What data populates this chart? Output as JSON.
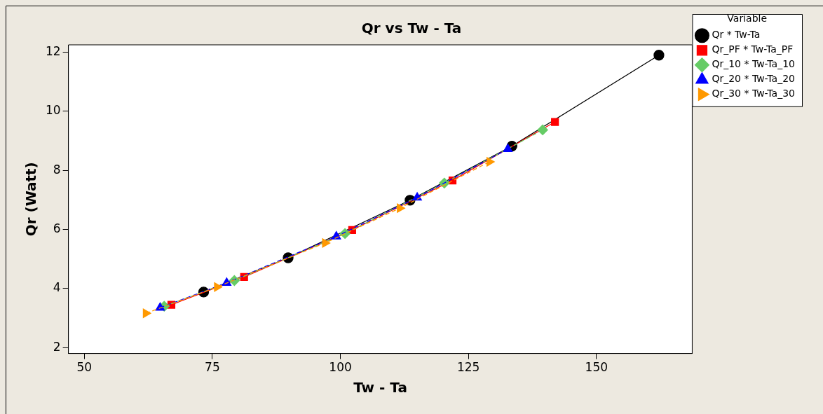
{
  "chart_data": {
    "type": "line",
    "title": "Qr vs Tw - Ta",
    "xlabel": "Tw - Ta",
    "ylabel": "Qr (Watt)",
    "legend_title": "Variable",
    "legend": "right",
    "grid": false,
    "xlim": [
      46.9,
      168.7
    ],
    "xticks": [
      50,
      75,
      100,
      125,
      150
    ],
    "ylim": [
      1.8,
      12.25
    ],
    "yticks": [
      2,
      4,
      6,
      8,
      10,
      12
    ],
    "series": [
      {
        "name": "Qr * Tw-Ta",
        "color": "#000000",
        "marker": "circle",
        "line_style": "solid",
        "x": [
          73.3,
          89.8,
          113.6,
          133.5,
          162.2
        ],
        "values": [
          3.88,
          5.04,
          6.99,
          8.82,
          11.9
        ]
      },
      {
        "name": "Qr_PF * Tw-Ta_PF",
        "color": "#ff0000",
        "marker": "square",
        "line_style": "solid",
        "x": [
          67.0,
          81.2,
          102.3,
          121.9,
          141.9
        ],
        "values": [
          3.45,
          4.39,
          5.98,
          7.66,
          9.64
        ]
      },
      {
        "name": "Qr_10 * Tw-Ta_10",
        "color": "#66cc66",
        "marker": "diamond",
        "line_style": "dashed",
        "x": [
          65.6,
          79.3,
          100.9,
          120.3,
          139.5
        ],
        "values": [
          3.4,
          4.27,
          5.86,
          7.57,
          9.37
        ]
      },
      {
        "name": "Qr_20 * Tw-Ta_20",
        "color": "#0000ff",
        "marker": "triangle",
        "line_style": "dashed",
        "x": [
          64.8,
          77.8,
          99.2,
          115.0,
          132.7
        ],
        "values": [
          3.35,
          4.19,
          5.76,
          7.08,
          8.72
        ]
      },
      {
        "name": "Qr_30 * Tw-Ta_30",
        "color": "#ff9900",
        "marker": "triangle-right",
        "line_style": "dashed",
        "x": [
          62.0,
          75.9,
          97.0,
          111.6,
          129.1
        ],
        "values": [
          3.16,
          4.05,
          5.54,
          6.72,
          8.29
        ]
      }
    ]
  }
}
